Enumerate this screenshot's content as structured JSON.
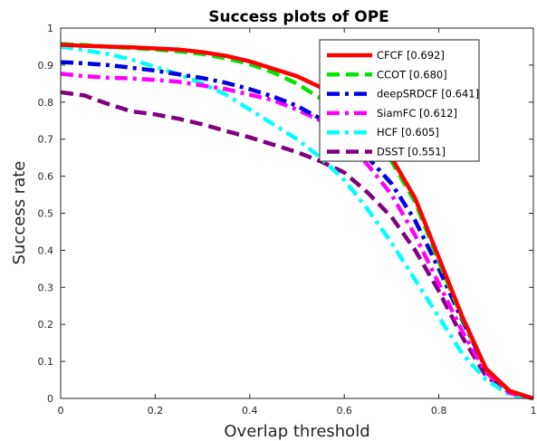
{
  "chart_data": {
    "type": "line",
    "title": "Success plots of OPE",
    "xlabel": "Overlap threshold",
    "ylabel": "Success rate",
    "xlim": [
      0,
      1
    ],
    "ylim": [
      0,
      1
    ],
    "xticks": [
      "0",
      "0.2",
      "0.4",
      "0.6",
      "0.8",
      "1"
    ],
    "yticks": [
      "0",
      "0.1",
      "0.2",
      "0.3",
      "0.4",
      "0.5",
      "0.6",
      "0.7",
      "0.8",
      "0.9",
      "1"
    ],
    "grid": false,
    "legend_position": "top-right",
    "x": [
      0,
      0.05,
      0.1,
      0.15,
      0.2,
      0.25,
      0.3,
      0.35,
      0.4,
      0.45,
      0.5,
      0.55,
      0.6,
      0.65,
      0.7,
      0.75,
      0.8,
      0.85,
      0.9,
      0.95,
      1.0
    ],
    "series": [
      {
        "name": "CFCF [0.692]",
        "color": "#ff0000",
        "dash": "solid",
        "values": [
          0.955,
          0.952,
          0.95,
          0.948,
          0.945,
          0.942,
          0.935,
          0.925,
          0.91,
          0.89,
          0.87,
          0.84,
          0.8,
          0.74,
          0.65,
          0.54,
          0.38,
          0.22,
          0.08,
          0.02,
          0.0
        ]
      },
      {
        "name": "CCOT [0.680]",
        "color": "#00e600",
        "dash": "dash",
        "values": [
          0.957,
          0.954,
          0.95,
          0.946,
          0.942,
          0.937,
          0.93,
          0.918,
          0.903,
          0.88,
          0.85,
          0.81,
          0.76,
          0.71,
          0.64,
          0.53,
          0.37,
          0.215,
          0.08,
          0.02,
          0.0
        ]
      },
      {
        "name": "deepSRDCF [0.641]",
        "color": "#0000e0",
        "dash": "dashdot",
        "values": [
          0.908,
          0.905,
          0.9,
          0.893,
          0.885,
          0.875,
          0.865,
          0.852,
          0.835,
          0.815,
          0.79,
          0.755,
          0.71,
          0.65,
          0.58,
          0.48,
          0.35,
          0.21,
          0.08,
          0.02,
          0.0
        ]
      },
      {
        "name": "SiamFC [0.612]",
        "color": "#ff00ff",
        "dash": "dashdot",
        "values": [
          0.877,
          0.87,
          0.866,
          0.864,
          0.86,
          0.855,
          0.845,
          0.835,
          0.82,
          0.805,
          0.78,
          0.75,
          0.7,
          0.63,
          0.55,
          0.44,
          0.31,
          0.18,
          0.07,
          0.015,
          0.0
        ]
      },
      {
        "name": "HCF [0.605]",
        "color": "#00ffff",
        "dash": "dashdot",
        "values": [
          0.95,
          0.94,
          0.93,
          0.915,
          0.895,
          0.875,
          0.85,
          0.82,
          0.78,
          0.74,
          0.7,
          0.65,
          0.59,
          0.51,
          0.42,
          0.32,
          0.22,
          0.12,
          0.05,
          0.01,
          0.0
        ]
      },
      {
        "name": "DSST [0.551]",
        "color": "#800080",
        "dash": "dash",
        "values": [
          0.827,
          0.818,
          0.795,
          0.775,
          0.767,
          0.755,
          0.74,
          0.722,
          0.705,
          0.685,
          0.665,
          0.64,
          0.61,
          0.555,
          0.49,
          0.4,
          0.29,
          0.165,
          0.06,
          0.015,
          0.0
        ]
      }
    ]
  }
}
